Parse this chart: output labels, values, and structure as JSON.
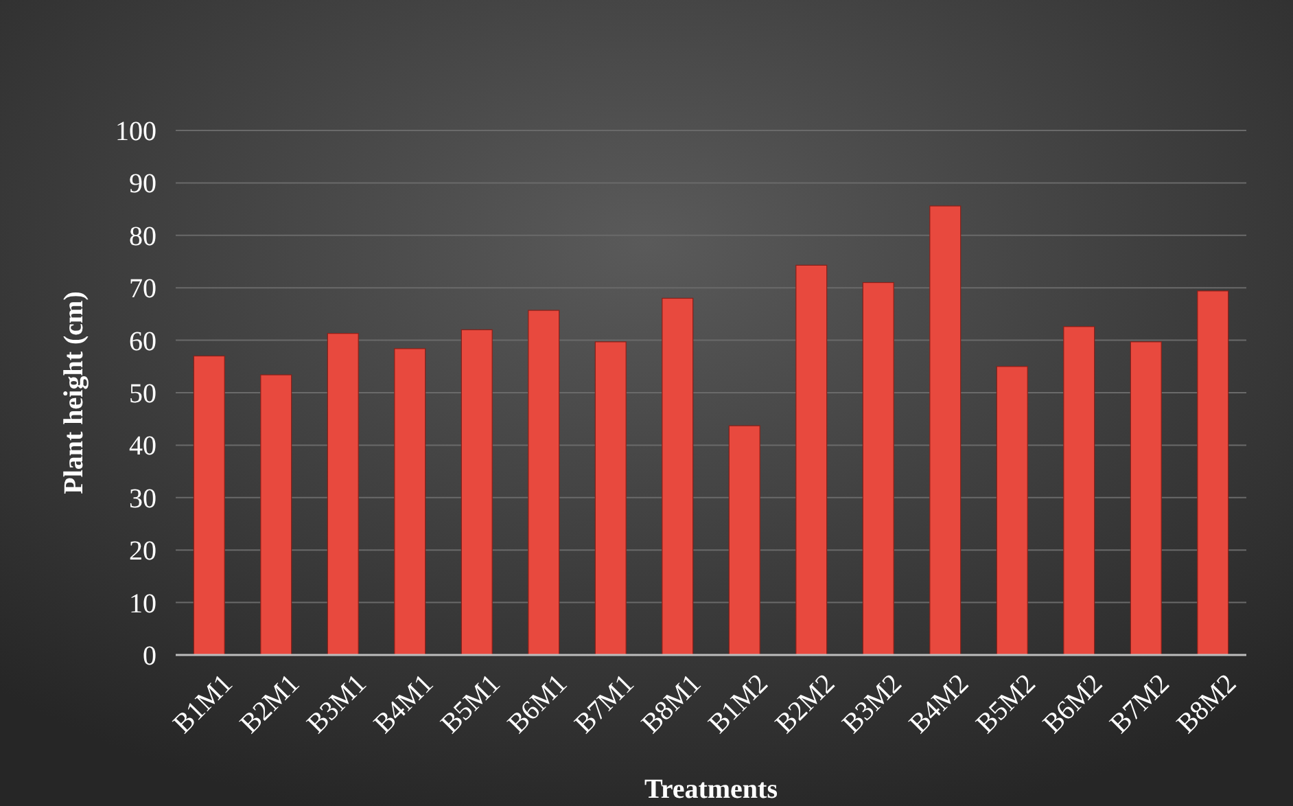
{
  "chart_data": {
    "type": "bar",
    "xlabel": "Treatments",
    "ylabel": "Plant height (cm)",
    "categories": [
      "B1M1",
      "B2M1",
      "B3M1",
      "B4M1",
      "B5M1",
      "B6M1",
      "B7M1",
      "B8M1",
      "B1M2",
      "B2M2",
      "B3M2",
      "B4M2",
      "B5M2",
      "B6M2",
      "B7M2",
      "B8M2"
    ],
    "values": [
      57,
      53.4,
      61.3,
      58.4,
      62,
      65.7,
      59.7,
      68,
      43.7,
      74.3,
      71,
      85.6,
      55,
      62.6,
      59.7,
      69.4
    ],
    "color": "#e8493e",
    "ylim": [
      0,
      100
    ],
    "yticks": [
      0,
      10,
      20,
      30,
      40,
      50,
      60,
      70,
      80,
      90,
      100
    ],
    "grid": "y"
  }
}
